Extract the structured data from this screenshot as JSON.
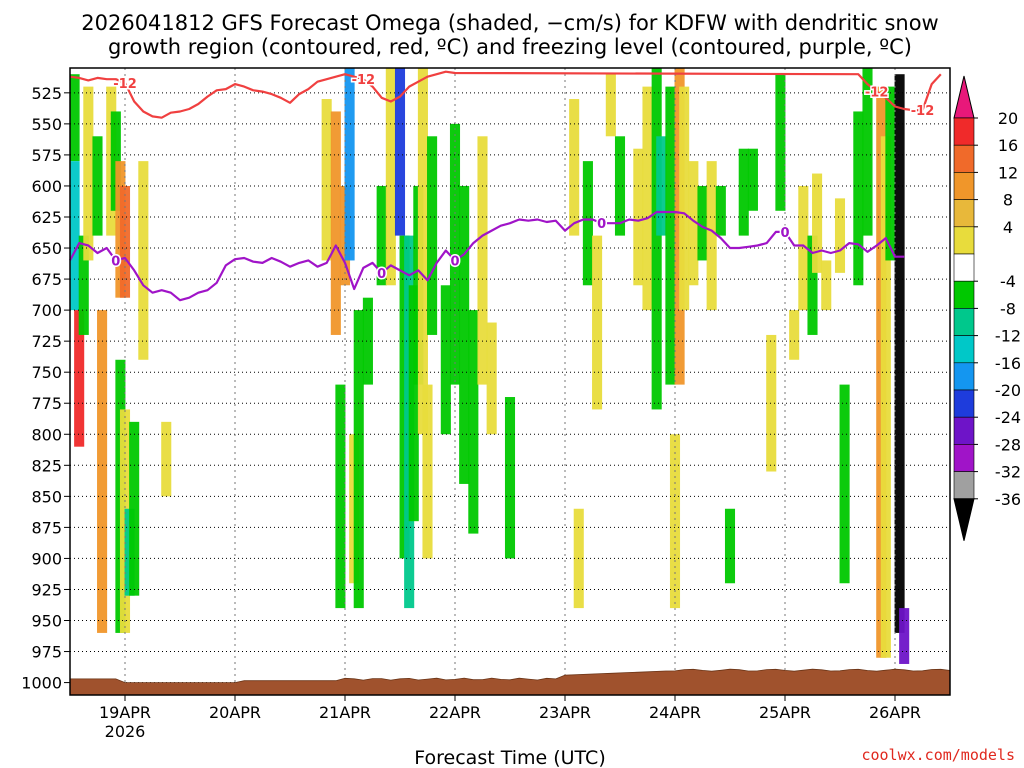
{
  "chart_data": {
    "type": "heatmap",
    "title_line1": "2026041812 GFS Forecast Omega (shaded, −cm/s) for KDFW with dendritic snow",
    "title_line2": "growth region (contoured, red, ºC) and freezing level (contoured, purple, ºC)",
    "xlabel": "Forecast Time (UTC)",
    "credit": "coolwx.com/models",
    "x_range_hours": [
      -12,
      180
    ],
    "x_ticks": [
      {
        "hour": 0,
        "label": "19APR",
        "sublabel": "2026"
      },
      {
        "hour": 24,
        "label": "20APR",
        "sublabel": ""
      },
      {
        "hour": 48,
        "label": "21APR",
        "sublabel": ""
      },
      {
        "hour": 72,
        "label": "22APR",
        "sublabel": ""
      },
      {
        "hour": 96,
        "label": "23APR",
        "sublabel": ""
      },
      {
        "hour": 120,
        "label": "24APR",
        "sublabel": ""
      },
      {
        "hour": 144,
        "label": "25APR",
        "sublabel": ""
      },
      {
        "hour": 168,
        "label": "26APR",
        "sublabel": ""
      }
    ],
    "y_range_hpa": [
      505,
      1010
    ],
    "y_ticks": [
      "525",
      "550",
      "575",
      "600",
      "625",
      "650",
      "675",
      "700",
      "725",
      "750",
      "775",
      "800",
      "825",
      "850",
      "875",
      "900",
      "925",
      "950",
      "975",
      "1000"
    ],
    "colorbar": {
      "labels": [
        "20",
        "16",
        "12",
        "8",
        "4",
        "-4",
        "-8",
        "-12",
        "-16",
        "-20",
        "-24",
        "-28",
        "-32",
        "-36"
      ],
      "colors": [
        "#e8187a",
        "#f02a2a",
        "#f06a2a",
        "#f0962a",
        "#e8b83a",
        "#e8dc3c",
        "#ffffff",
        "#00c800",
        "#00c88c",
        "#00c8c8",
        "#1496f0",
        "#1e3cdc",
        "#6e14c8",
        "#a014c8",
        "#a0a0a0",
        "#000000"
      ]
    },
    "freezing_level": {
      "label": "0",
      "color": "#a014c8",
      "points": [
        [
          -12,
          660
        ],
        [
          -10,
          646
        ],
        [
          -8,
          648
        ],
        [
          -6,
          654
        ],
        [
          -4,
          650
        ],
        [
          -2,
          660
        ],
        [
          0,
          658
        ],
        [
          2,
          668
        ],
        [
          4,
          680
        ],
        [
          6,
          686
        ],
        [
          8,
          684
        ],
        [
          10,
          686
        ],
        [
          12,
          692
        ],
        [
          14,
          690
        ],
        [
          16,
          686
        ],
        [
          18,
          684
        ],
        [
          20,
          678
        ],
        [
          22,
          664
        ],
        [
          24,
          659
        ],
        [
          26,
          658
        ],
        [
          28,
          661
        ],
        [
          30,
          662
        ],
        [
          32,
          658
        ],
        [
          34,
          661
        ],
        [
          36,
          665
        ],
        [
          38,
          662
        ],
        [
          40,
          660
        ],
        [
          42,
          665
        ],
        [
          44,
          662
        ],
        [
          46,
          648
        ],
        [
          48,
          662
        ],
        [
          50,
          683
        ],
        [
          52,
          666
        ],
        [
          54,
          662
        ],
        [
          56,
          670
        ],
        [
          58,
          664
        ],
        [
          60,
          668
        ],
        [
          62,
          672
        ],
        [
          64,
          668
        ],
        [
          66,
          676
        ],
        [
          68,
          662
        ],
        [
          70,
          652
        ],
        [
          72,
          660
        ],
        [
          74,
          655
        ],
        [
          76,
          646
        ],
        [
          78,
          640
        ],
        [
          80,
          636
        ],
        [
          82,
          632
        ],
        [
          84,
          630
        ],
        [
          86,
          627
        ],
        [
          88,
          628
        ],
        [
          90,
          627
        ],
        [
          92,
          629
        ],
        [
          94,
          628
        ],
        [
          96,
          636
        ],
        [
          98,
          630
        ],
        [
          100,
          627
        ],
        [
          102,
          627
        ],
        [
          104,
          630
        ],
        [
          106,
          630
        ],
        [
          108,
          630
        ],
        [
          110,
          627
        ],
        [
          112,
          628
        ],
        [
          114,
          626
        ],
        [
          116,
          621
        ],
        [
          118,
          621
        ],
        [
          120,
          621
        ],
        [
          122,
          622
        ],
        [
          124,
          628
        ],
        [
          126,
          633
        ],
        [
          128,
          636
        ],
        [
          130,
          642
        ],
        [
          132,
          650
        ],
        [
          134,
          650
        ],
        [
          136,
          649
        ],
        [
          138,
          648
        ],
        [
          140,
          646
        ],
        [
          142,
          637
        ],
        [
          144,
          637
        ],
        [
          146,
          648
        ],
        [
          148,
          648
        ],
        [
          150,
          654
        ],
        [
          152,
          652
        ],
        [
          154,
          654
        ],
        [
          156,
          652
        ],
        [
          158,
          646
        ],
        [
          160,
          647
        ],
        [
          162,
          653
        ],
        [
          164,
          648
        ],
        [
          166,
          642
        ],
        [
          168,
          657
        ],
        [
          170,
          657
        ]
      ]
    },
    "dgz_line": {
      "label": "-12",
      "color": "#f04040",
      "points": [
        [
          -12,
          512
        ],
        [
          -10,
          513
        ],
        [
          -8,
          515
        ],
        [
          -6,
          513
        ],
        [
          -4,
          514
        ],
        [
          -2,
          514
        ],
        [
          0,
          517
        ],
        [
          2,
          532
        ],
        [
          4,
          540
        ],
        [
          6,
          544
        ],
        [
          8,
          545
        ],
        [
          10,
          541
        ],
        [
          12,
          540
        ],
        [
          14,
          538
        ],
        [
          16,
          534
        ],
        [
          18,
          528
        ],
        [
          20,
          523
        ],
        [
          22,
          522
        ],
        [
          24,
          518
        ],
        [
          26,
          520
        ],
        [
          28,
          523
        ],
        [
          30,
          524
        ],
        [
          32,
          526
        ],
        [
          34,
          529
        ],
        [
          36,
          533
        ],
        [
          38,
          526
        ],
        [
          40,
          522
        ],
        [
          42,
          516
        ],
        [
          44,
          514
        ],
        [
          46,
          512
        ],
        [
          48,
          510
        ],
        [
          50,
          512
        ],
        [
          52,
          514
        ],
        [
          54,
          520
        ],
        [
          56,
          529
        ],
        [
          58,
          532
        ],
        [
          60,
          528
        ],
        [
          62,
          520
        ],
        [
          64,
          516
        ],
        [
          66,
          512
        ],
        [
          68,
          510
        ],
        [
          70,
          508
        ],
        [
          72,
          509
        ],
        [
          160,
          510
        ],
        [
          162,
          518
        ],
        [
          164,
          524
        ],
        [
          166,
          529
        ],
        [
          168,
          536
        ],
        [
          170,
          538
        ],
        [
          172,
          539
        ],
        [
          174,
          539
        ],
        [
          176,
          518
        ],
        [
          178,
          510
        ]
      ]
    },
    "shading": [
      {
        "hour": -11,
        "p1": 510,
        "p2": 580,
        "level": -8
      },
      {
        "hour": -11,
        "p1": 580,
        "p2": 700,
        "level": -16
      },
      {
        "hour": -10,
        "p1": 700,
        "p2": 810,
        "level": 16
      },
      {
        "hour": -9,
        "p1": 640,
        "p2": 720,
        "level": -8
      },
      {
        "hour": -8,
        "p1": 520,
        "p2": 660,
        "level": 4
      },
      {
        "hour": -6,
        "p1": 560,
        "p2": 640,
        "level": -8
      },
      {
        "hour": -5,
        "p1": 700,
        "p2": 960,
        "level": 8
      },
      {
        "hour": -3,
        "p1": 520,
        "p2": 640,
        "level": 4
      },
      {
        "hour": -2,
        "p1": 540,
        "p2": 620,
        "level": -8
      },
      {
        "hour": -1,
        "p1": 580,
        "p2": 690,
        "level": 8
      },
      {
        "hour": -1,
        "p1": 740,
        "p2": 960,
        "level": -8
      },
      {
        "hour": 0,
        "p1": 780,
        "p2": 960,
        "level": 4
      },
      {
        "hour": 0,
        "p1": 600,
        "p2": 690,
        "level": 12
      },
      {
        "hour": 1,
        "p1": 860,
        "p2": 930,
        "level": -12
      },
      {
        "hour": 2,
        "p1": 790,
        "p2": 930,
        "level": -8
      },
      {
        "hour": 4,
        "p1": 580,
        "p2": 740,
        "level": 4
      },
      {
        "hour": 9,
        "p1": 790,
        "p2": 850,
        "level": 4
      },
      {
        "hour": 44,
        "p1": 530,
        "p2": 660,
        "level": 4
      },
      {
        "hour": 46,
        "p1": 540,
        "p2": 720,
        "level": 8
      },
      {
        "hour": 47,
        "p1": 760,
        "p2": 940,
        "level": -8
      },
      {
        "hour": 48,
        "p1": 600,
        "p2": 680,
        "level": 8
      },
      {
        "hour": 49,
        "p1": 500,
        "p2": 660,
        "level": -20
      },
      {
        "hour": 50,
        "p1": 800,
        "p2": 920,
        "level": 4
      },
      {
        "hour": 51,
        "p1": 700,
        "p2": 940,
        "level": -8
      },
      {
        "hour": 53,
        "p1": 690,
        "p2": 760,
        "level": -8
      },
      {
        "hour": 56,
        "p1": 600,
        "p2": 680,
        "level": -8
      },
      {
        "hour": 58,
        "p1": 500,
        "p2": 680,
        "level": 4
      },
      {
        "hour": 60,
        "p1": 500,
        "p2": 640,
        "level": -24
      },
      {
        "hour": 61,
        "p1": 640,
        "p2": 900,
        "level": -8
      },
      {
        "hour": 62,
        "p1": 640,
        "p2": 940,
        "level": -12
      },
      {
        "hour": 63,
        "p1": 680,
        "p2": 870,
        "level": -8
      },
      {
        "hour": 64,
        "p1": 600,
        "p2": 760,
        "level": -8
      },
      {
        "hour": 65,
        "p1": 500,
        "p2": 800,
        "level": 4
      },
      {
        "hour": 66,
        "p1": 760,
        "p2": 900,
        "level": 4
      },
      {
        "hour": 67,
        "p1": 560,
        "p2": 720,
        "level": -8
      },
      {
        "hour": 70,
        "p1": 680,
        "p2": 800,
        "level": -8
      },
      {
        "hour": 72,
        "p1": 550,
        "p2": 760,
        "level": -8
      },
      {
        "hour": 74,
        "p1": 600,
        "p2": 840,
        "level": -8
      },
      {
        "hour": 76,
        "p1": 700,
        "p2": 880,
        "level": -8
      },
      {
        "hour": 78,
        "p1": 560,
        "p2": 760,
        "level": 4
      },
      {
        "hour": 80,
        "p1": 710,
        "p2": 800,
        "level": 4
      },
      {
        "hour": 84,
        "p1": 770,
        "p2": 900,
        "level": -8
      },
      {
        "hour": 98,
        "p1": 530,
        "p2": 640,
        "level": 4
      },
      {
        "hour": 99,
        "p1": 860,
        "p2": 940,
        "level": 4
      },
      {
        "hour": 101,
        "p1": 580,
        "p2": 680,
        "level": -8
      },
      {
        "hour": 103,
        "p1": 640,
        "p2": 780,
        "level": 4
      },
      {
        "hour": 106,
        "p1": 510,
        "p2": 560,
        "level": 4
      },
      {
        "hour": 108,
        "p1": 560,
        "p2": 640,
        "level": -8
      },
      {
        "hour": 112,
        "p1": 570,
        "p2": 680,
        "level": 4
      },
      {
        "hour": 114,
        "p1": 520,
        "p2": 700,
        "level": 4
      },
      {
        "hour": 116,
        "p1": 500,
        "p2": 780,
        "level": -8
      },
      {
        "hour": 117,
        "p1": 560,
        "p2": 640,
        "level": -12
      },
      {
        "hour": 119,
        "p1": 520,
        "p2": 760,
        "level": -8
      },
      {
        "hour": 120,
        "p1": 800,
        "p2": 940,
        "level": 4
      },
      {
        "hour": 121,
        "p1": 500,
        "p2": 760,
        "level": 8
      },
      {
        "hour": 122,
        "p1": 520,
        "p2": 700,
        "level": 4
      },
      {
        "hour": 124,
        "p1": 580,
        "p2": 680,
        "level": 4
      },
      {
        "hour": 126,
        "p1": 600,
        "p2": 660,
        "level": -8
      },
      {
        "hour": 128,
        "p1": 580,
        "p2": 700,
        "level": 4
      },
      {
        "hour": 130,
        "p1": 600,
        "p2": 640,
        "level": -8
      },
      {
        "hour": 132,
        "p1": 860,
        "p2": 920,
        "level": -8
      },
      {
        "hour": 135,
        "p1": 570,
        "p2": 640,
        "level": -8
      },
      {
        "hour": 137,
        "p1": 570,
        "p2": 620,
        "level": -8
      },
      {
        "hour": 141,
        "p1": 720,
        "p2": 830,
        "level": 4
      },
      {
        "hour": 143,
        "p1": 510,
        "p2": 620,
        "level": -8
      },
      {
        "hour": 146,
        "p1": 700,
        "p2": 740,
        "level": 4
      },
      {
        "hour": 148,
        "p1": 600,
        "p2": 700,
        "level": 4
      },
      {
        "hour": 150,
        "p1": 640,
        "p2": 720,
        "level": -8
      },
      {
        "hour": 151,
        "p1": 590,
        "p2": 670,
        "level": 4
      },
      {
        "hour": 153,
        "p1": 660,
        "p2": 700,
        "level": 4
      },
      {
        "hour": 156,
        "p1": 610,
        "p2": 670,
        "level": 4
      },
      {
        "hour": 157,
        "p1": 760,
        "p2": 920,
        "level": -8
      },
      {
        "hour": 160,
        "p1": 540,
        "p2": 680,
        "level": -8
      },
      {
        "hour": 162,
        "p1": 500,
        "p2": 640,
        "level": -8
      },
      {
        "hour": 165,
        "p1": 520,
        "p2": 980,
        "level": 8
      },
      {
        "hour": 166,
        "p1": 560,
        "p2": 980,
        "level": 4
      },
      {
        "hour": 167,
        "p1": 520,
        "p2": 660,
        "level": -8
      },
      {
        "hour": 169,
        "p1": 510,
        "p2": 960,
        "level": -36
      },
      {
        "hour": 170,
        "p1": 940,
        "p2": 985,
        "level": -28
      }
    ],
    "terrain_color": "#a0522d"
  }
}
